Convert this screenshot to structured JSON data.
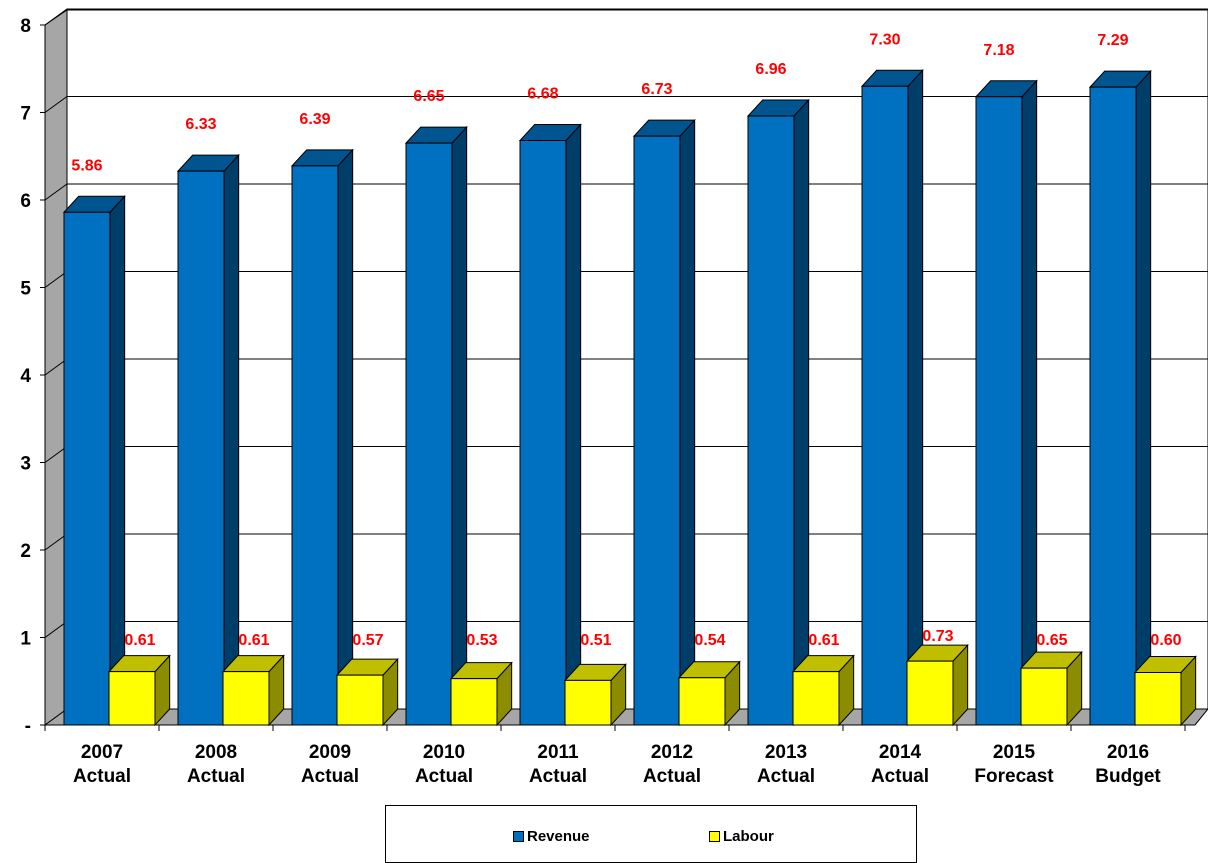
{
  "chart_data": {
    "type": "bar",
    "categories": [
      [
        "2007",
        "Actual"
      ],
      [
        "2008",
        "Actual"
      ],
      [
        "2009",
        "Actual"
      ],
      [
        "2010",
        "Actual"
      ],
      [
        "2011",
        "Actual"
      ],
      [
        "2012",
        "Actual"
      ],
      [
        "2013",
        "Actual"
      ],
      [
        "2014",
        "Actual"
      ],
      [
        "2015",
        "Forecast"
      ],
      [
        "2016",
        "Budget"
      ]
    ],
    "series": [
      {
        "name": "Revenue",
        "color": "#0070C0",
        "values": [
          5.86,
          6.33,
          6.39,
          6.65,
          6.68,
          6.73,
          6.96,
          7.3,
          7.18,
          7.29
        ],
        "labels": [
          "5.86",
          "6.33",
          "6.39",
          "6.65",
          "6.68",
          "6.73",
          "6.96",
          "7.30",
          "7.18",
          "7.29"
        ]
      },
      {
        "name": "Labour",
        "color": "#FFFF00",
        "values": [
          0.61,
          0.61,
          0.57,
          0.53,
          0.51,
          0.54,
          0.61,
          0.73,
          0.65,
          0.6
        ],
        "labels": [
          "0.61",
          "0.61",
          "0.57",
          "0.53",
          "0.51",
          "0.54",
          "0.61",
          "0.73",
          "0.65",
          "0.60"
        ]
      }
    ],
    "ylim": [
      0,
      8
    ],
    "yticks": [
      "-",
      "1",
      "2",
      "3",
      "4",
      "5",
      "6",
      "7",
      "8"
    ],
    "grid": true,
    "three_d": true,
    "data_label_color": "#FF0000",
    "legend_position": "bottom",
    "title": "",
    "xlabel": "",
    "ylabel": ""
  }
}
